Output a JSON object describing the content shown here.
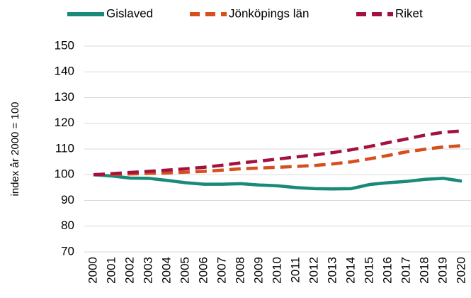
{
  "chart_data": {
    "type": "line",
    "y_label": "index år 2000 = 100",
    "categories": [
      "2000",
      "2001",
      "2002",
      "2003",
      "2004",
      "2005",
      "2006",
      "2007",
      "2008",
      "2009",
      "2010",
      "2011",
      "2012",
      "2013",
      "2014",
      "2015",
      "2016",
      "2017",
      "2018",
      "2019",
      "2020"
    ],
    "series": [
      {
        "name": "Gislaved",
        "color": "#1a8a78",
        "dash": "none",
        "values": [
          100,
          99.5,
          98.7,
          98.6,
          97.8,
          96.9,
          96.3,
          96.3,
          96.5,
          96.0,
          95.7,
          95.0,
          94.6,
          94.5,
          94.6,
          96.2,
          96.9,
          97.4,
          98.2,
          98.6,
          97.5
        ]
      },
      {
        "name": "Jönköpings län",
        "color": "#d64f1e",
        "dash": "dashed",
        "values": [
          100,
          100.2,
          100.3,
          100.5,
          100.7,
          101.0,
          101.3,
          101.8,
          102.3,
          102.6,
          102.9,
          103.2,
          103.6,
          104.2,
          105.0,
          106.2,
          107.5,
          108.9,
          109.9,
          110.8,
          111.3
        ]
      },
      {
        "name": "Riket",
        "color": "#a3123f",
        "dash": "dashed",
        "values": [
          100,
          100.4,
          100.9,
          101.3,
          101.8,
          102.3,
          102.9,
          103.7,
          104.6,
          105.3,
          106.1,
          106.9,
          107.7,
          108.6,
          109.7,
          111.0,
          112.5,
          113.9,
          115.4,
          116.5,
          117.0
        ]
      }
    ],
    "ylim": [
      70,
      150
    ],
    "yticks": [
      70,
      80,
      90,
      100,
      110,
      120,
      130,
      140,
      150
    ],
    "grid": true,
    "legend": "top"
  }
}
